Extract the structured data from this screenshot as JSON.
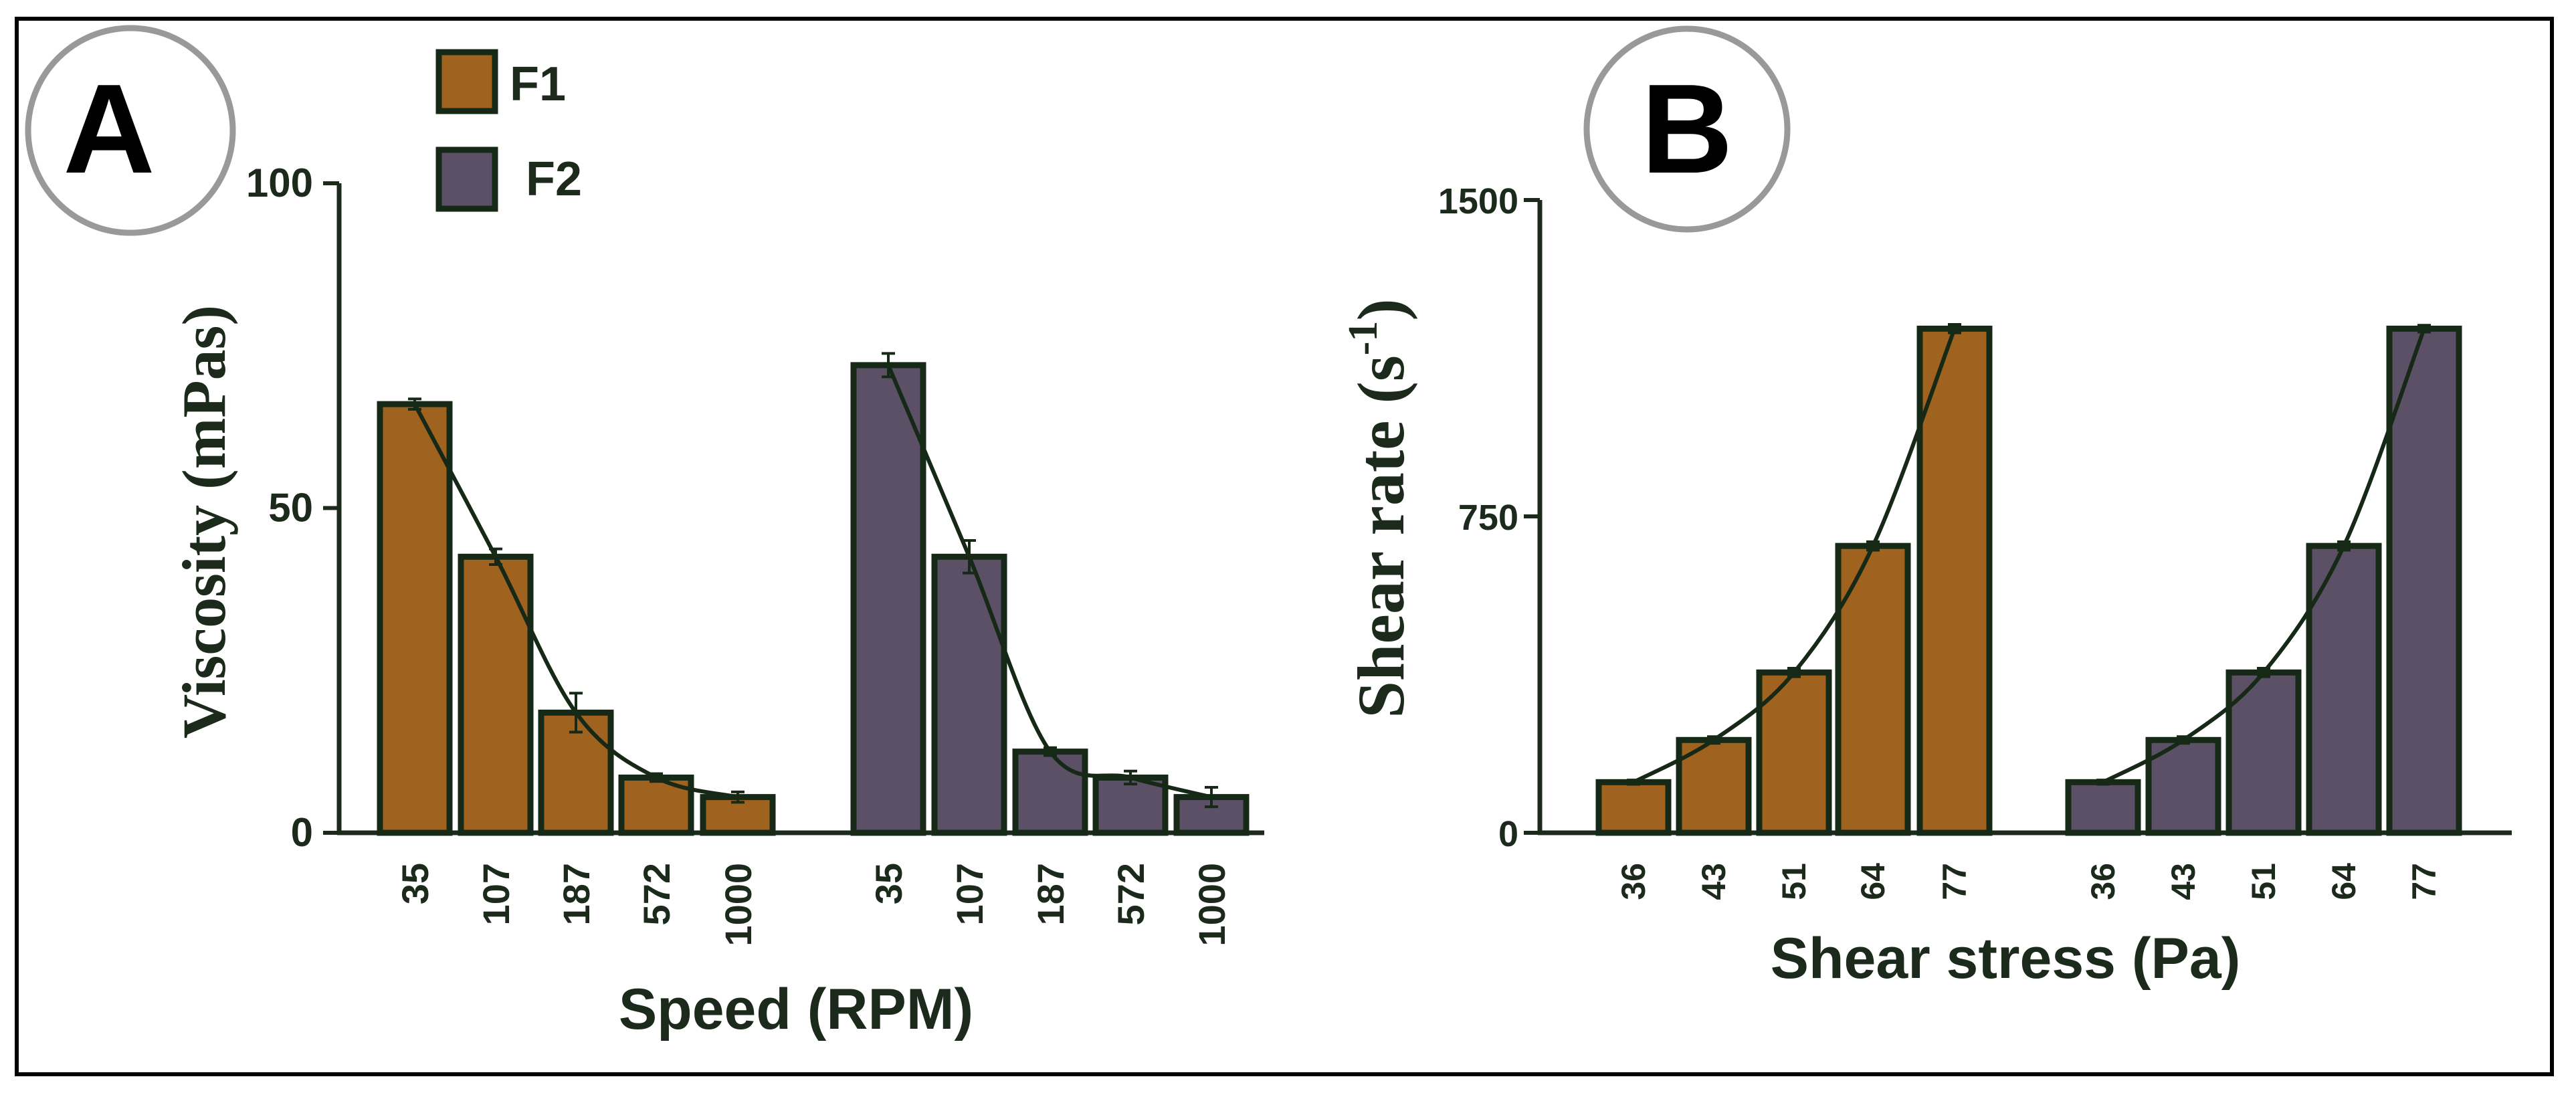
{
  "colors": {
    "F1": "#a0621f",
    "F2": "#5b5066",
    "outline": "#162816",
    "axis": "#1c2a1c",
    "frame": "#000000"
  },
  "legend": [
    {
      "label": "F1",
      "series": "F1"
    },
    {
      "label": "F2",
      "series": "F2"
    }
  ],
  "chart_data": [
    {
      "panel": "A",
      "type": "bar",
      "ylabel": "Viscosity (mPas)",
      "xlabel": "Speed (RPM)",
      "ylim": [
        0,
        100
      ],
      "yticks": [
        "0",
        "50",
        "100"
      ],
      "categories": [
        "35",
        "107",
        "187",
        "572",
        "1000"
      ],
      "series": [
        {
          "name": "F1",
          "values": [
            66,
            42.5,
            18.5,
            8.5,
            5.5
          ],
          "errors": [
            0.8,
            1.2,
            3,
            0.6,
            0.8
          ]
        },
        {
          "name": "F2",
          "values": [
            72,
            42.5,
            12.5,
            8.5,
            5.5
          ],
          "errors": [
            1.8,
            2.5,
            0.6,
            1,
            1.5
          ]
        }
      ]
    },
    {
      "panel": "B",
      "type": "bar",
      "ylabel": "Shear rate (s",
      "ylabel_sup": "-1",
      "ylabel_end": ")",
      "xlabel": "Shear stress (Pa)",
      "ylim": [
        0,
        1500
      ],
      "yticks": [
        "0",
        "750",
        "1500"
      ],
      "categories": [
        "36",
        "43",
        "51",
        "64",
        "77"
      ],
      "series": [
        {
          "name": "F1",
          "values": [
            120,
            220,
            380,
            680,
            1195
          ],
          "errors": [
            5,
            8,
            10,
            10,
            10
          ]
        },
        {
          "name": "F2",
          "values": [
            120,
            220,
            380,
            680,
            1195
          ],
          "errors": [
            5,
            8,
            10,
            10,
            8
          ]
        }
      ]
    }
  ]
}
